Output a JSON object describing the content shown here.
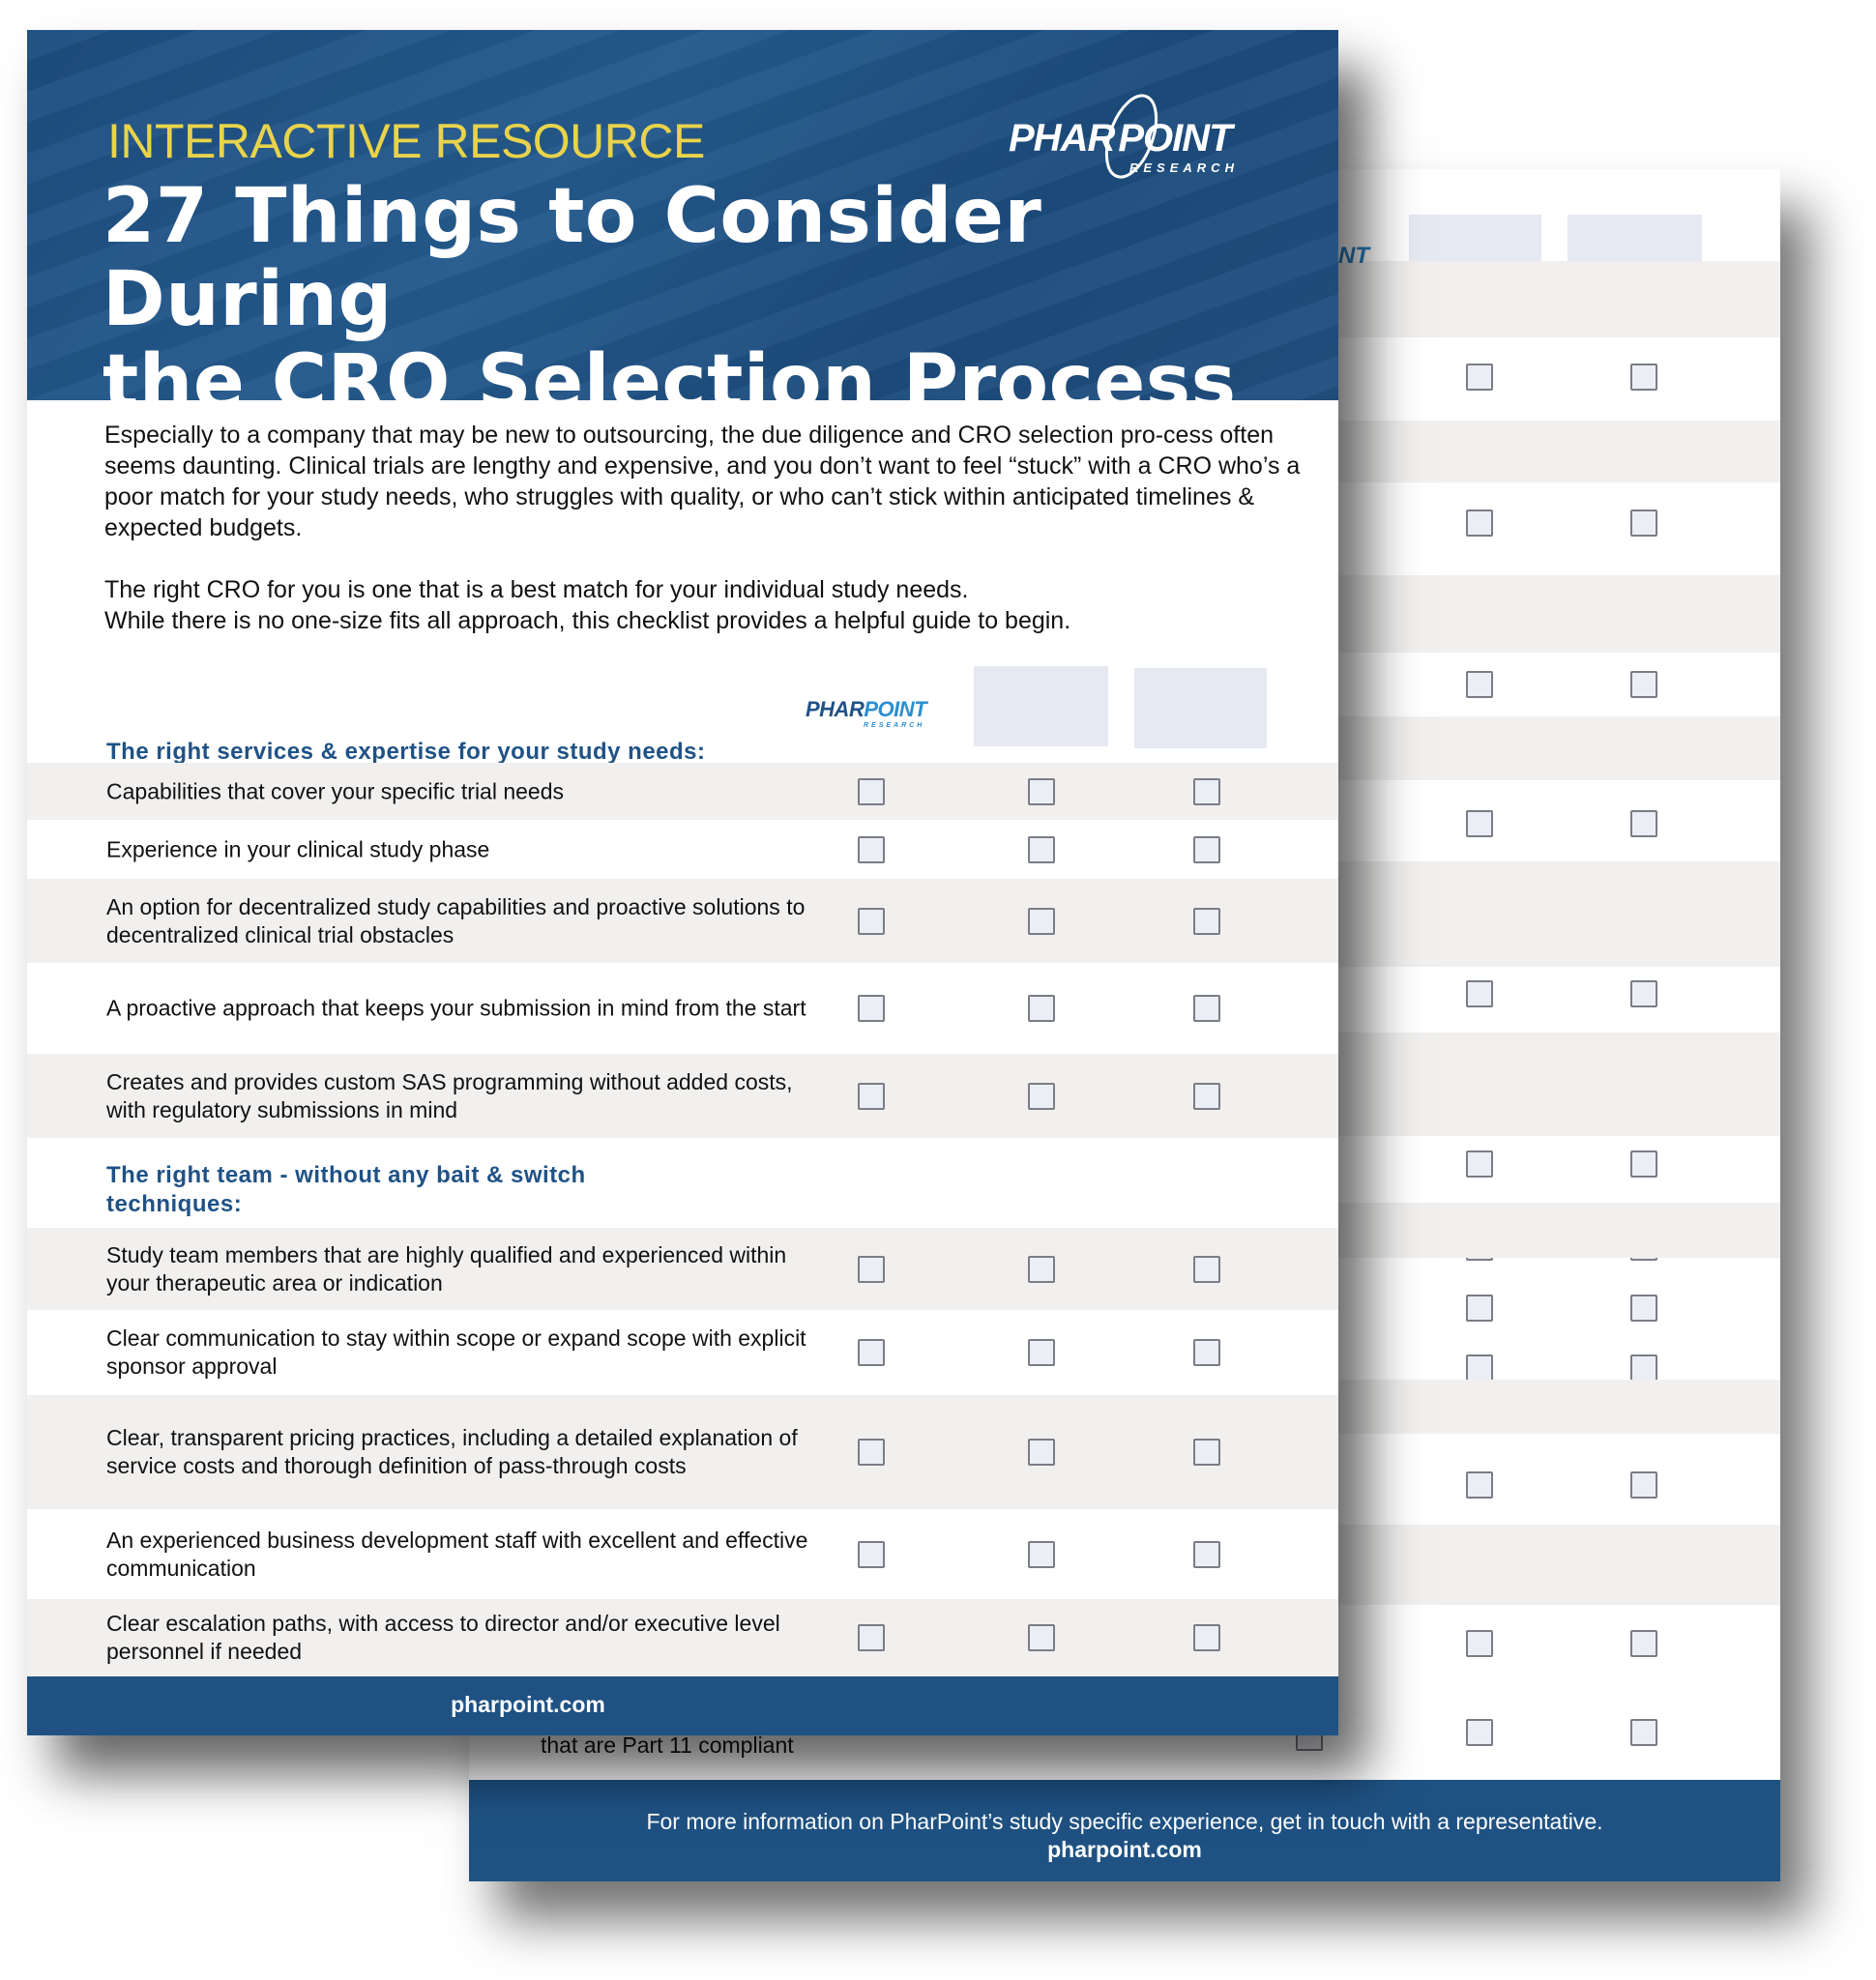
{
  "brand": {
    "logo_text": "PHARPOINT",
    "logo_sub": "RESEARCH",
    "accent": "#1f5283",
    "eyebrow_color": "#e8d34a"
  },
  "header": {
    "eyebrow": "INTERACTIVE RESOURCE",
    "title_line1": "27 Things to Consider During",
    "title_line2": "the CRO Selection Process"
  },
  "intro": {
    "paragraph1": "Especially to a company that may be new to outsourcing, the due diligence and CRO selection pro-cess often seems daunting. Clinical trials are lengthy and expensive, and you don’t want to feel “stuck” with a CRO who’s a poor match for your study needs, who struggles with quality, or who can’t stick within anticipated timelines & expected budgets.",
    "paragraph2_line1": "The right CRO for you is one that is a best match for your individual study needs.",
    "paragraph2_line2": "While there is no one-size fits all approach, this checklist provides a helpful guide to begin."
  },
  "sections": [
    {
      "title": "The right services & expertise for your study needs:",
      "items": [
        "Capabilities that cover your specific trial needs",
        "Experience in your clinical study phase",
        "An option for decentralized study capabilities and proactive solutions to decentralized clinical trial obstacles",
        "A proactive approach that keeps your submission in mind from the start",
        "Creates and provides custom SAS programming without added costs, with regulatory submissions in mind"
      ]
    },
    {
      "title": "The right team - without any bait & switch techniques:",
      "items": [
        "Study team members that are highly qualified and experienced within your therapeutic area or indication",
        "Clear communication to stay within scope or expand scope with explicit sponsor approval",
        "Clear, transparent pricing practices, including a detailed explanation of service costs and thorough definition of pass-through costs",
        "An experienced business development staff with excellent and effective communication",
        "Clear escalation paths, with access to director and/or executive level personnel if needed"
      ]
    }
  ],
  "footer": {
    "url": "pharpoint.com"
  },
  "back_page": {
    "visible_item": "that are Part 11 compliant",
    "footer_text": "For more information on PharPoint’s study specific experience, get in touch with a representative.",
    "footer_url": "pharpoint.com",
    "logo_fragment": "NT"
  }
}
